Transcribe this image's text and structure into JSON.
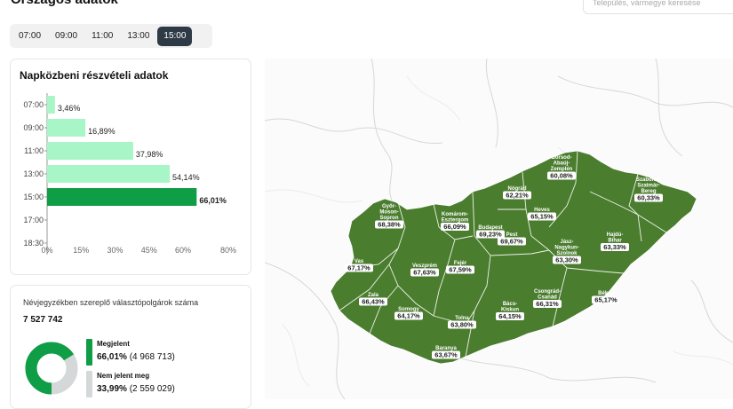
{
  "header": {
    "title": "Országos adatok",
    "search_placeholder": "Település, vármegye keresése"
  },
  "time_tabs": [
    {
      "label": "07:00",
      "active": false
    },
    {
      "label": "09:00",
      "active": false
    },
    {
      "label": "11:00",
      "active": false
    },
    {
      "label": "13:00",
      "active": false
    },
    {
      "label": "15:00",
      "active": true
    }
  ],
  "colors": {
    "accent_dark": "#0f9d46",
    "accent_light": "#a8f5c8",
    "map_fill": "#4b7d2f",
    "donut_rest": "#d5d8d8",
    "active_tab": "#2f3a47"
  },
  "participation_card": {
    "title": "Napközbeni részvételi adatok"
  },
  "chart_data": {
    "type": "bar",
    "orientation": "horizontal",
    "title": "Napközbeni részvételi adatok",
    "categories": [
      "07:00",
      "09:00",
      "11:00",
      "13:00",
      "15:00",
      "17:00",
      "18:30"
    ],
    "values": [
      3.46,
      16.89,
      37.98,
      54.14,
      66.01,
      null,
      null
    ],
    "data_labels": [
      "3,46%",
      "16,89%",
      "37,98%",
      "54,14%",
      "66,01%",
      "",
      ""
    ],
    "highlight_index": 4,
    "xlim": [
      0,
      80
    ],
    "xticks": [
      "0%",
      "15%",
      "30%",
      "45%",
      "60%",
      "80%"
    ],
    "xtick_values": [
      0,
      15,
      30,
      45,
      60,
      80
    ],
    "grid": false
  },
  "registry_card": {
    "caption": "Névjegyzékben szereplő választópolgárok száma",
    "total": "7 527 742",
    "appeared_label": "Megjelent",
    "appeared_pct": "66,01%",
    "appeared_count": "(4 968 713)",
    "appeared_value": 66.01,
    "absent_label": "Nem jelent meg",
    "absent_pct": "33,99%",
    "absent_count": "(2 559 029)",
    "absent_value": 33.99
  },
  "map": {
    "counties": [
      {
        "name": "Győr-Moson-Sopron",
        "name_lines": [
          "Győr-",
          "Moson-",
          "Sopron"
        ],
        "pct": "68,38%"
      },
      {
        "name": "Komárom-Esztergom",
        "name_lines": [
          "Komárom-",
          "Esztergom"
        ],
        "pct": "66,09%"
      },
      {
        "name": "Nógrád",
        "name_lines": [
          "Nógrád"
        ],
        "pct": "62,21%"
      },
      {
        "name": "Borsod-Abaúj-Zemplén",
        "name_lines": [
          "Borsod-",
          "Abaúj-",
          "Zemplén"
        ],
        "pct": "60,08%"
      },
      {
        "name": "Szabolcs-Szatmár-Bereg",
        "name_lines": [
          "Szabolcs-",
          "Szatmár-",
          "Bereg"
        ],
        "pct": "60,33%"
      },
      {
        "name": "Heves",
        "name_lines": [
          "Heves"
        ],
        "pct": "65,15%"
      },
      {
        "name": "Budapest",
        "name_lines": [
          "Budapest"
        ],
        "pct": "69,23%"
      },
      {
        "name": "Pest",
        "name_lines": [
          "Pest"
        ],
        "pct": "69,67%"
      },
      {
        "name": "Jász-Nagykun-Szolnok",
        "name_lines": [
          "Jász-",
          "Nagykun-",
          "Szolnok"
        ],
        "pct": "63,30%"
      },
      {
        "name": "Hajdú-Bihar",
        "name_lines": [
          "Hajdú-",
          "Bihar"
        ],
        "pct": "63,33%"
      },
      {
        "name": "Vas",
        "name_lines": [
          "Vas"
        ],
        "pct": "67,17%"
      },
      {
        "name": "Veszprém",
        "name_lines": [
          "Veszprém"
        ],
        "pct": "67,63%"
      },
      {
        "name": "Fejér",
        "name_lines": [
          "Fejér"
        ],
        "pct": "67,59%"
      },
      {
        "name": "Zala",
        "name_lines": [
          "Zala"
        ],
        "pct": "66,43%"
      },
      {
        "name": "Somogy",
        "name_lines": [
          "Somogy"
        ],
        "pct": "64,17%"
      },
      {
        "name": "Tolna",
        "name_lines": [
          "Tolna"
        ],
        "pct": "63,80%"
      },
      {
        "name": "Bács-Kiskun",
        "name_lines": [
          "Bács-",
          "Kiskun"
        ],
        "pct": "64,15%"
      },
      {
        "name": "Csongrád-Csanád",
        "name_lines": [
          "Csongrád-",
          "Csanád"
        ],
        "pct": "66,31%"
      },
      {
        "name": "Békés",
        "name_lines": [
          "Békés"
        ],
        "pct": "65,17%"
      },
      {
        "name": "Baranya",
        "name_lines": [
          "Baranya"
        ],
        "pct": "63,67%"
      }
    ]
  }
}
